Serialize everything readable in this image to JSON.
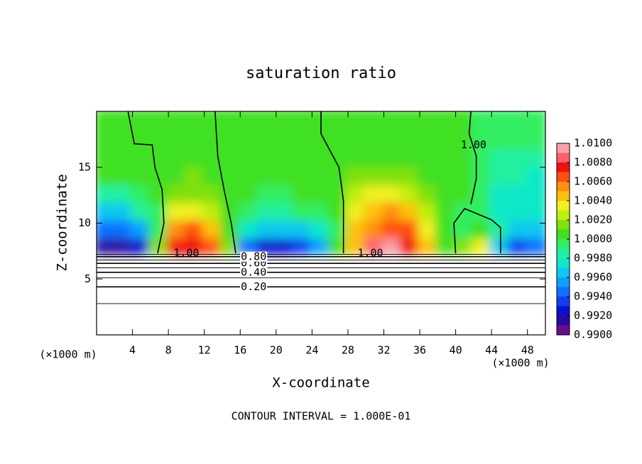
{
  "chart_data": {
    "type": "contour",
    "title": "saturation ratio",
    "x_label": "X-coordinate",
    "y_label": "Z-coordinate",
    "x_unit": "(×1000 m)",
    "y_unit": "(×1000 m)",
    "footer": "CONTOUR INTERVAL = 1.000E-01",
    "xlim": [
      0,
      50
    ],
    "ylim": [
      0,
      20
    ],
    "xticks": [
      4,
      8,
      12,
      16,
      20,
      24,
      28,
      32,
      36,
      40,
      44,
      48
    ],
    "yticks": [
      5,
      10,
      15
    ],
    "field": {
      "x_edges": [
        0,
        2,
        4,
        6,
        8,
        10,
        12,
        14,
        16,
        18,
        20,
        22,
        24,
        26,
        28,
        30,
        32,
        34,
        36,
        38,
        40,
        42,
        44,
        46,
        48,
        50
      ],
      "z_edges": [
        7.2,
        8.8,
        10.4,
        12,
        13.6,
        15.2,
        16.8,
        18.4,
        20
      ],
      "values": [
        [
          0.9915,
          0.994,
          0.9965,
          0.9985,
          1.0,
          1.0003,
          1.0003,
          1.0003
        ],
        [
          0.9915,
          0.994,
          0.9968,
          0.9988,
          1.0,
          1.0003,
          1.0003,
          1.0003
        ],
        [
          0.9925,
          0.9955,
          0.998,
          0.9995,
          1.0002,
          1.0003,
          1.0003,
          1.0003
        ],
        [
          1.001,
          0.9995,
          0.9998,
          1.0003,
          1.0004,
          1.0004,
          1.0003,
          1.0003
        ],
        [
          1.007,
          1.005,
          1.003,
          1.0015,
          1.0008,
          1.0006,
          1.0005,
          1.0004
        ],
        [
          1.0075,
          1.006,
          1.0035,
          1.0018,
          1.001,
          1.0007,
          1.0005,
          1.0004
        ],
        [
          1.0065,
          1.004,
          1.0025,
          1.0012,
          1.0008,
          1.0006,
          1.0005,
          1.0004
        ],
        [
          1.001,
          1.0005,
          1.0005,
          1.0005,
          1.0005,
          1.0004,
          1.0003,
          1.0003
        ],
        [
          0.994,
          0.9975,
          0.9993,
          1.0,
          1.0002,
          1.0002,
          1.0002,
          1.0002
        ],
        [
          0.992,
          0.996,
          0.9985,
          0.9997,
          1.0001,
          1.0002,
          1.0002,
          1.0002
        ],
        [
          0.9925,
          0.996,
          0.9985,
          0.9998,
          1.0001,
          1.0002,
          1.0002,
          1.0002
        ],
        [
          0.993,
          0.9965,
          0.999,
          1.0,
          1.0002,
          1.0002,
          1.0002,
          1.0002
        ],
        [
          0.995,
          0.9975,
          0.9995,
          1.0002,
          1.0003,
          1.0003,
          1.0003,
          1.0003
        ],
        [
          1.0,
          0.9998,
          1.0002,
          1.0004,
          1.0004,
          1.0004,
          1.0003,
          1.0003
        ],
        [
          1.0045,
          1.004,
          1.0035,
          1.002,
          1.001,
          1.0006,
          1.0004,
          1.0003
        ],
        [
          1.0085,
          1.0055,
          1.0045,
          1.003,
          1.0015,
          1.0008,
          1.0005,
          1.0003
        ],
        [
          1.0095,
          1.0065,
          1.005,
          1.003,
          1.0016,
          1.0009,
          1.0005,
          1.0003
        ],
        [
          1.0075,
          1.006,
          1.004,
          1.0022,
          1.0012,
          1.0008,
          1.0005,
          1.0003
        ],
        [
          1.004,
          1.003,
          1.002,
          1.0012,
          1.0008,
          1.0005,
          1.0003,
          1.0002
        ],
        [
          1.0005,
          1.0005,
          1.0005,
          1.0004,
          1.0003,
          1.0002,
          1.0001,
          1.0001
        ],
        [
          1.0012,
          0.9995,
          0.9998,
          1.0,
          1.0,
          1.0,
          1.0,
          1.0
        ],
        [
          1.003,
          1.0,
          0.999,
          0.999,
          0.9992,
          0.9995,
          0.9998,
          0.9999
        ],
        [
          0.996,
          0.998,
          0.9975,
          0.9978,
          0.9982,
          0.9988,
          0.9994,
          0.9997
        ],
        [
          0.993,
          0.996,
          0.997,
          0.9975,
          0.998,
          0.9986,
          0.9992,
          0.9996
        ],
        [
          0.9945,
          0.9965,
          0.997,
          0.9975,
          0.9978,
          0.9985,
          0.999,
          0.9995
        ]
      ]
    },
    "colorbar": {
      "levels": [
        0.99,
        0.991,
        0.992,
        0.993,
        0.994,
        0.995,
        0.996,
        0.997,
        0.998,
        0.999,
        1.0,
        1.001,
        1.002,
        1.003,
        1.004,
        1.005,
        1.006,
        1.007,
        1.008,
        1.009,
        1.01
      ],
      "colors": [
        "#6a0d8a",
        "#2a0aa0",
        "#0a10d0",
        "#1040f0",
        "#1070ff",
        "#10a0ff",
        "#10c8f0",
        "#10e8c8",
        "#20f0a0",
        "#30ee60",
        "#40e020",
        "#80e010",
        "#c0ee10",
        "#f0f020",
        "#ffc010",
        "#ff9010",
        "#ff5010",
        "#f01010",
        "#ff6070",
        "#f8a0a8"
      ],
      "ticks": [
        {
          "value": 0.99,
          "label": "0.9900"
        },
        {
          "value": 0.992,
          "label": "0.9920"
        },
        {
          "value": 0.994,
          "label": "0.9940"
        },
        {
          "value": 0.996,
          "label": "0.9960"
        },
        {
          "value": 0.998,
          "label": "0.9980"
        },
        {
          "value": 1.0,
          "label": "1.0000"
        },
        {
          "value": 1.002,
          "label": "1.0020"
        },
        {
          "value": 1.004,
          "label": "1.0040"
        },
        {
          "value": 1.006,
          "label": "1.0060"
        },
        {
          "value": 1.008,
          "label": "1.0080"
        },
        {
          "value": 1.01,
          "label": "1.0100"
        }
      ]
    },
    "contour_levels": [
      {
        "level": 0.1,
        "z": 2.8
      },
      {
        "level": 0.2,
        "z": 4.3,
        "label": "0.20",
        "label_x": 17.5
      },
      {
        "level": 0.3,
        "z": 5.1
      },
      {
        "level": 0.4,
        "z": 5.6,
        "label": "0.40",
        "label_x": 17.5
      },
      {
        "level": 0.5,
        "z": 6.0
      },
      {
        "level": 0.6,
        "z": 6.4,
        "label": "0.60",
        "label_x": 17.5
      },
      {
        "level": 0.7,
        "z": 6.7
      },
      {
        "level": 0.8,
        "z": 7.0,
        "label": "0.80",
        "label_x": 17.5
      },
      {
        "level": 0.9,
        "z": 7.2
      }
    ],
    "unity_contour": {
      "label": "1.00",
      "pieces": [
        {
          "x": [
            6.8,
            7.5,
            7.3,
            6.5,
            6.2,
            4.2,
            3.5
          ],
          "z": [
            7.3,
            10,
            13,
            15,
            17,
            17.1,
            20
          ]
        },
        {
          "x": [
            15.5,
            15.0,
            14.2,
            13.5,
            13.2
          ],
          "z": [
            7.3,
            10,
            13,
            16,
            20
          ]
        },
        {
          "x": [
            27.5,
            27.5,
            27.0,
            25.0,
            25.0
          ],
          "z": [
            7.3,
            12,
            15,
            18,
            20
          ]
        },
        {
          "x": [
            40.0,
            39.8,
            41.0,
            44.0,
            45.0,
            45.0
          ],
          "z": [
            7.3,
            10,
            11.3,
            10.3,
            9.6,
            7.3
          ]
        },
        {
          "x": [
            41.7,
            42.3,
            42.3,
            41.5,
            41.7
          ],
          "z": [
            11.7,
            14,
            16,
            18,
            20
          ]
        }
      ],
      "label_positions": [
        [
          10,
          7.3
        ],
        [
          30.5,
          7.3
        ],
        [
          42,
          17
        ]
      ]
    }
  }
}
